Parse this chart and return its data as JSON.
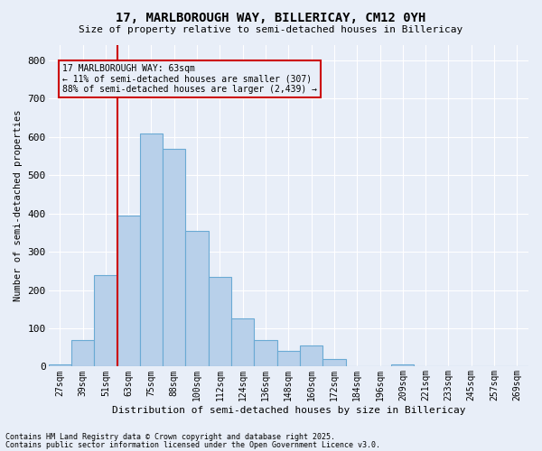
{
  "title_line1": "17, MARLBOROUGH WAY, BILLERICAY, CM12 0YH",
  "title_line2": "Size of property relative to semi-detached houses in Billericay",
  "xlabel": "Distribution of semi-detached houses by size in Billericay",
  "ylabel": "Number of semi-detached properties",
  "categories": [
    "27sqm",
    "39sqm",
    "51sqm",
    "63sqm",
    "75sqm",
    "88sqm",
    "100sqm",
    "112sqm",
    "124sqm",
    "136sqm",
    "148sqm",
    "160sqm",
    "172sqm",
    "184sqm",
    "196sqm",
    "209sqm",
    "221sqm",
    "233sqm",
    "245sqm",
    "257sqm",
    "269sqm"
  ],
  "values": [
    5,
    70,
    240,
    395,
    610,
    570,
    355,
    235,
    125,
    70,
    40,
    55,
    20,
    0,
    0,
    5,
    0,
    0,
    0,
    0,
    0
  ],
  "bar_color": "#b8d0ea",
  "bar_edge_color": "#6aaad4",
  "bg_color": "#e8eef8",
  "grid_color": "#ffffff",
  "vline_index": 3,
  "vline_color": "#cc0000",
  "annotation_text": "17 MARLBOROUGH WAY: 63sqm\n← 11% of semi-detached houses are smaller (307)\n88% of semi-detached houses are larger (2,439) →",
  "annotation_box_color": "#cc0000",
  "footer_line1": "Contains HM Land Registry data © Crown copyright and database right 2025.",
  "footer_line2": "Contains public sector information licensed under the Open Government Licence v3.0.",
  "ylim": [
    0,
    840
  ],
  "yticks": [
    0,
    100,
    200,
    300,
    400,
    500,
    600,
    700,
    800
  ]
}
